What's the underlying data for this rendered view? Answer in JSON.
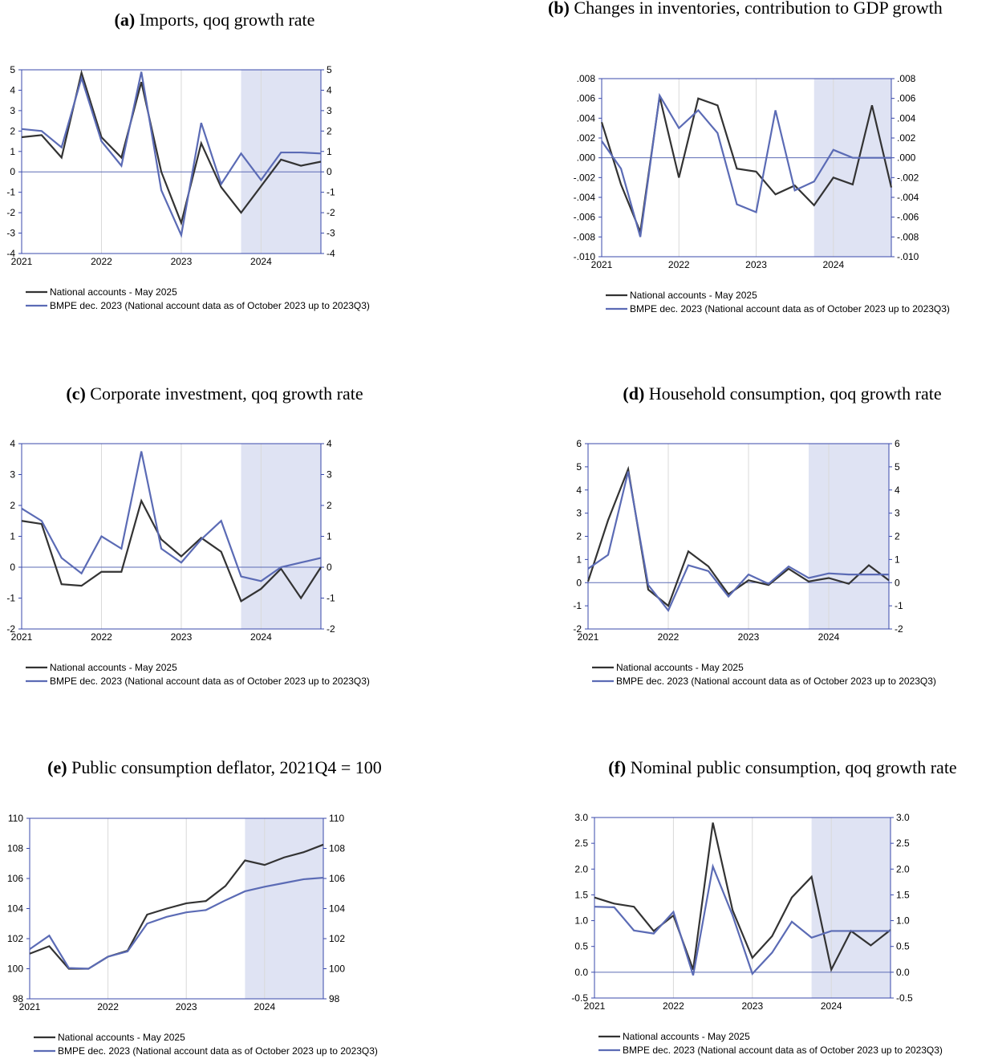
{
  "chart_data": [
    {
      "type": "line",
      "panel": "(a)",
      "title": "Imports, qoq growth rate",
      "x": [
        2021,
        2021.25,
        2021.5,
        2021.75,
        2022,
        2022.25,
        2022.5,
        2022.75,
        2023,
        2023.25,
        2023.5,
        2023.75,
        2024,
        2024.25,
        2024.5,
        2024.75
      ],
      "xlim": [
        2021,
        2024.75
      ],
      "xticks": [
        2021,
        2022,
        2023,
        2024
      ],
      "ylim": [
        -4,
        5
      ],
      "yticks": [
        -4,
        -3,
        -2,
        -1,
        0,
        1,
        2,
        3,
        4,
        5
      ],
      "y2lim": [
        -4,
        5
      ],
      "y2ticks": [
        -4,
        -3,
        -2,
        -1,
        0,
        1,
        2,
        3,
        4,
        5
      ],
      "shaded_x": [
        2023.75,
        2024.75
      ],
      "shade_color": "#dfe3f3",
      "grid": "x",
      "series": [
        {
          "name": "National accounts - May 2025",
          "color": "#333333",
          "values": [
            1.7,
            1.8,
            0.7,
            4.85,
            1.7,
            0.7,
            4.4,
            0.0,
            -2.5,
            1.4,
            -0.75,
            -2.0,
            -0.7,
            0.6,
            0.3,
            0.5
          ]
        },
        {
          "name": "BMPE dec. 2023 (National account data as of October 2023 up to 2023Q3)",
          "color": "#5b6bb5",
          "values": [
            2.1,
            2.0,
            1.2,
            4.6,
            1.5,
            0.3,
            4.9,
            -0.9,
            -3.1,
            2.4,
            -0.6,
            0.9,
            -0.4,
            0.95,
            0.95,
            0.9
          ]
        }
      ]
    },
    {
      "type": "line",
      "panel": "(b)",
      "title": "Changes in inventories, contribution to GDP growth",
      "x": [
        2021,
        2021.25,
        2021.5,
        2021.75,
        2022,
        2022.25,
        2022.5,
        2022.75,
        2023,
        2023.25,
        2023.5,
        2023.75,
        2024,
        2024.25,
        2024.5,
        2024.75
      ],
      "xlim": [
        2021,
        2024.75
      ],
      "xticks": [
        2021,
        2022,
        2023,
        2024
      ],
      "ylim": [
        -0.01,
        0.008
      ],
      "yticks": [
        {
          "value": -0.01,
          "label": "-.010"
        },
        {
          "value": -0.008,
          "label": "-.008"
        },
        {
          "value": -0.006,
          "label": "-.006"
        },
        {
          "value": -0.004,
          "label": "-.004"
        },
        {
          "value": -0.002,
          "label": "-.002"
        },
        {
          "value": 0,
          "label": ".000"
        },
        {
          "value": 0.002,
          "label": ".002"
        },
        {
          "value": 0.004,
          "label": ".004"
        },
        {
          "value": 0.006,
          "label": ".006"
        },
        {
          "value": 0.008,
          "label": ".008"
        }
      ],
      "y2lim": [
        -0.01,
        0.008
      ],
      "y2ticks": [
        {
          "value": -0.01,
          "label": "-.010"
        },
        {
          "value": -0.008,
          "label": "-.008"
        },
        {
          "value": -0.006,
          "label": "-.006"
        },
        {
          "value": -0.004,
          "label": "-.004"
        },
        {
          "value": -0.002,
          "label": "-.002"
        },
        {
          "value": 0,
          "label": ".000"
        },
        {
          "value": 0.002,
          "label": ".002"
        },
        {
          "value": 0.004,
          "label": ".004"
        },
        {
          "value": 0.006,
          "label": ".006"
        },
        {
          "value": 0.008,
          "label": ".008"
        }
      ],
      "shaded_x": [
        2023.75,
        2024.75
      ],
      "shade_color": "#dfe3f3",
      "grid": "x",
      "series": [
        {
          "name": "National accounts - May 2025",
          "color": "#333333",
          "values": [
            0.0036,
            -0.0027,
            -0.0075,
            0.0062,
            -0.002,
            0.006,
            0.0053,
            -0.0011,
            -0.0014,
            -0.0037,
            -0.0028,
            -0.0048,
            -0.002,
            -0.0027,
            0.0053,
            -0.003
          ]
        },
        {
          "name": "BMPE dec. 2023 (National account data as of October 2023 up to 2023Q3)",
          "color": "#5b6bb5",
          "values": [
            0.0017,
            -0.0011,
            -0.008,
            0.0063,
            0.003,
            0.0048,
            0.0025,
            -0.0047,
            -0.0055,
            0.0048,
            -0.0033,
            -0.0024,
            0.0008,
            0.0,
            0.0,
            0.0
          ]
        }
      ]
    },
    {
      "type": "line",
      "panel": "(c)",
      "title": "Corporate investment, qoq growth rate",
      "x": [
        2021,
        2021.25,
        2021.5,
        2021.75,
        2022,
        2022.25,
        2022.5,
        2022.75,
        2023,
        2023.25,
        2023.5,
        2023.75,
        2024,
        2024.25,
        2024.5,
        2024.75
      ],
      "xlim": [
        2021,
        2024.75
      ],
      "xticks": [
        2021,
        2022,
        2023,
        2024
      ],
      "ylim": [
        -2,
        4
      ],
      "yticks": [
        -2,
        -1,
        0,
        1,
        2,
        3,
        4
      ],
      "y2lim": [
        -2,
        4
      ],
      "y2ticks": [
        -2,
        -1,
        0,
        1,
        2,
        3,
        4
      ],
      "shaded_x": [
        2023.75,
        2024.75
      ],
      "shade_color": "#dfe3f3",
      "grid": "x",
      "series": [
        {
          "name": "National accounts - May 2025",
          "color": "#333333",
          "values": [
            1.5,
            1.4,
            -0.55,
            -0.6,
            -0.15,
            -0.15,
            2.15,
            0.9,
            0.35,
            0.95,
            0.5,
            -1.1,
            -0.7,
            -0.05,
            -1.0,
            0.0
          ]
        },
        {
          "name": "BMPE dec. 2023 (National account data as of October 2023 up to 2023Q3)",
          "color": "#5b6bb5",
          "values": [
            1.9,
            1.5,
            0.3,
            -0.2,
            1.0,
            0.6,
            3.75,
            0.6,
            0.15,
            0.9,
            1.5,
            -0.3,
            -0.45,
            0.0,
            0.15,
            0.3
          ]
        }
      ]
    },
    {
      "type": "line",
      "panel": "(d)",
      "title": "Household consumption, qoq growth rate",
      "x": [
        2021,
        2021.25,
        2021.5,
        2021.75,
        2022,
        2022.25,
        2022.5,
        2022.75,
        2023,
        2023.25,
        2023.5,
        2023.75,
        2024,
        2024.25,
        2024.5,
        2024.75
      ],
      "xlim": [
        2021,
        2024.75
      ],
      "xticks": [
        2021,
        2022,
        2023,
        2024
      ],
      "ylim": [
        -2,
        6
      ],
      "yticks": [
        -2,
        -1,
        0,
        1,
        2,
        3,
        4,
        5,
        6
      ],
      "y2lim": [
        -2,
        6
      ],
      "y2ticks": [
        -2,
        -1,
        0,
        1,
        2,
        3,
        4,
        5,
        6
      ],
      "shaded_x": [
        2023.75,
        2024.75
      ],
      "shade_color": "#dfe3f3",
      "grid": "x",
      "series": [
        {
          "name": "National accounts - May 2025",
          "color": "#333333",
          "values": [
            0.05,
            2.7,
            4.9,
            -0.3,
            -1.0,
            1.35,
            0.7,
            -0.5,
            0.1,
            -0.1,
            0.6,
            0.05,
            0.2,
            -0.05,
            0.75,
            0.1
          ]
        },
        {
          "name": "BMPE dec. 2023 (National account data as of October 2023 up to 2023Q3)",
          "color": "#5b6bb5",
          "values": [
            0.6,
            1.2,
            4.8,
            -0.1,
            -1.2,
            0.75,
            0.5,
            -0.6,
            0.35,
            -0.05,
            0.7,
            0.2,
            0.4,
            0.35,
            0.35,
            0.35
          ]
        }
      ]
    },
    {
      "type": "line",
      "panel": "(e)",
      "title": "Public consumption deflator, 2021Q4 = 100",
      "x": [
        2021,
        2021.25,
        2021.5,
        2021.75,
        2022,
        2022.25,
        2022.5,
        2022.75,
        2023,
        2023.25,
        2023.5,
        2023.75,
        2024,
        2024.25,
        2024.5,
        2024.75
      ],
      "xlim": [
        2021,
        2024.75
      ],
      "xticks": [
        2021,
        2022,
        2023,
        2024
      ],
      "ylim": [
        98,
        110
      ],
      "yticks": [
        98,
        100,
        102,
        104,
        106,
        108,
        110
      ],
      "y2lim": [
        98,
        110
      ],
      "y2ticks": [
        98,
        100,
        102,
        104,
        106,
        108,
        110
      ],
      "shaded_x": [
        2023.75,
        2024.75
      ],
      "shade_color": "#dfe3f3",
      "grid": "x",
      "series": [
        {
          "name": "National accounts - May 2025",
          "color": "#333333",
          "values": [
            101.0,
            101.5,
            100.0,
            100.0,
            100.8,
            101.2,
            103.6,
            104.0,
            104.35,
            104.5,
            105.5,
            107.2,
            106.9,
            107.4,
            107.75,
            108.25
          ]
        },
        {
          "name": "BMPE dec. 2023 (National account data as of October 2023 up to 2023Q3)",
          "color": "#5b6bb5",
          "values": [
            101.3,
            102.2,
            100.05,
            100.0,
            100.8,
            101.15,
            103.0,
            103.45,
            103.75,
            103.9,
            104.55,
            105.15,
            105.45,
            105.7,
            105.95,
            106.05
          ]
        }
      ]
    },
    {
      "type": "line",
      "panel": "(f)",
      "title": "Nominal public consumption, qoq growth rate",
      "x": [
        2021,
        2021.25,
        2021.5,
        2021.75,
        2022,
        2022.25,
        2022.5,
        2022.75,
        2023,
        2023.25,
        2023.5,
        2023.75,
        2024,
        2024.25,
        2024.5,
        2024.75
      ],
      "xlim": [
        2021,
        2024.75
      ],
      "xticks": [
        2021,
        2022,
        2023,
        2024
      ],
      "ylim": [
        -0.5,
        3
      ],
      "yticks": [
        {
          "value": -0.5,
          "label": "-0.5"
        },
        {
          "value": 0,
          "label": "0.0"
        },
        {
          "value": 0.5,
          "label": "0.5"
        },
        {
          "value": 1,
          "label": "1.0"
        },
        {
          "value": 1.5,
          "label": "1.5"
        },
        {
          "value": 2,
          "label": "2.0"
        },
        {
          "value": 2.5,
          "label": "2.5"
        },
        {
          "value": 3,
          "label": "3.0"
        }
      ],
      "y2lim": [
        -0.5,
        3
      ],
      "y2ticks": [
        {
          "value": -0.5,
          "label": "-0.5"
        },
        {
          "value": 0,
          "label": "0.0"
        },
        {
          "value": 0.5,
          "label": "0.5"
        },
        {
          "value": 1,
          "label": "1.0"
        },
        {
          "value": 1.5,
          "label": "1.5"
        },
        {
          "value": 2,
          "label": "2.0"
        },
        {
          "value": 2.5,
          "label": "2.5"
        },
        {
          "value": 3,
          "label": "3.0"
        }
      ],
      "shaded_x": [
        2023.75,
        2024.75
      ],
      "shade_color": "#dfe3f3",
      "grid": "x",
      "series": [
        {
          "name": "National accounts - May 2025",
          "color": "#333333",
          "values": [
            1.45,
            1.33,
            1.27,
            0.8,
            1.1,
            0.05,
            2.9,
            1.2,
            0.28,
            0.7,
            1.45,
            1.85,
            0.05,
            0.8,
            0.52,
            0.82
          ]
        },
        {
          "name": "BMPE dec. 2023 (National account data as of October 2023 up to 2023Q3)",
          "color": "#5b6bb5",
          "values": [
            1.27,
            1.26,
            0.81,
            0.75,
            1.17,
            -0.06,
            2.05,
            1.1,
            -0.03,
            0.38,
            0.98,
            0.67,
            0.8,
            0.8,
            0.8,
            0.8
          ]
        }
      ]
    }
  ]
}
